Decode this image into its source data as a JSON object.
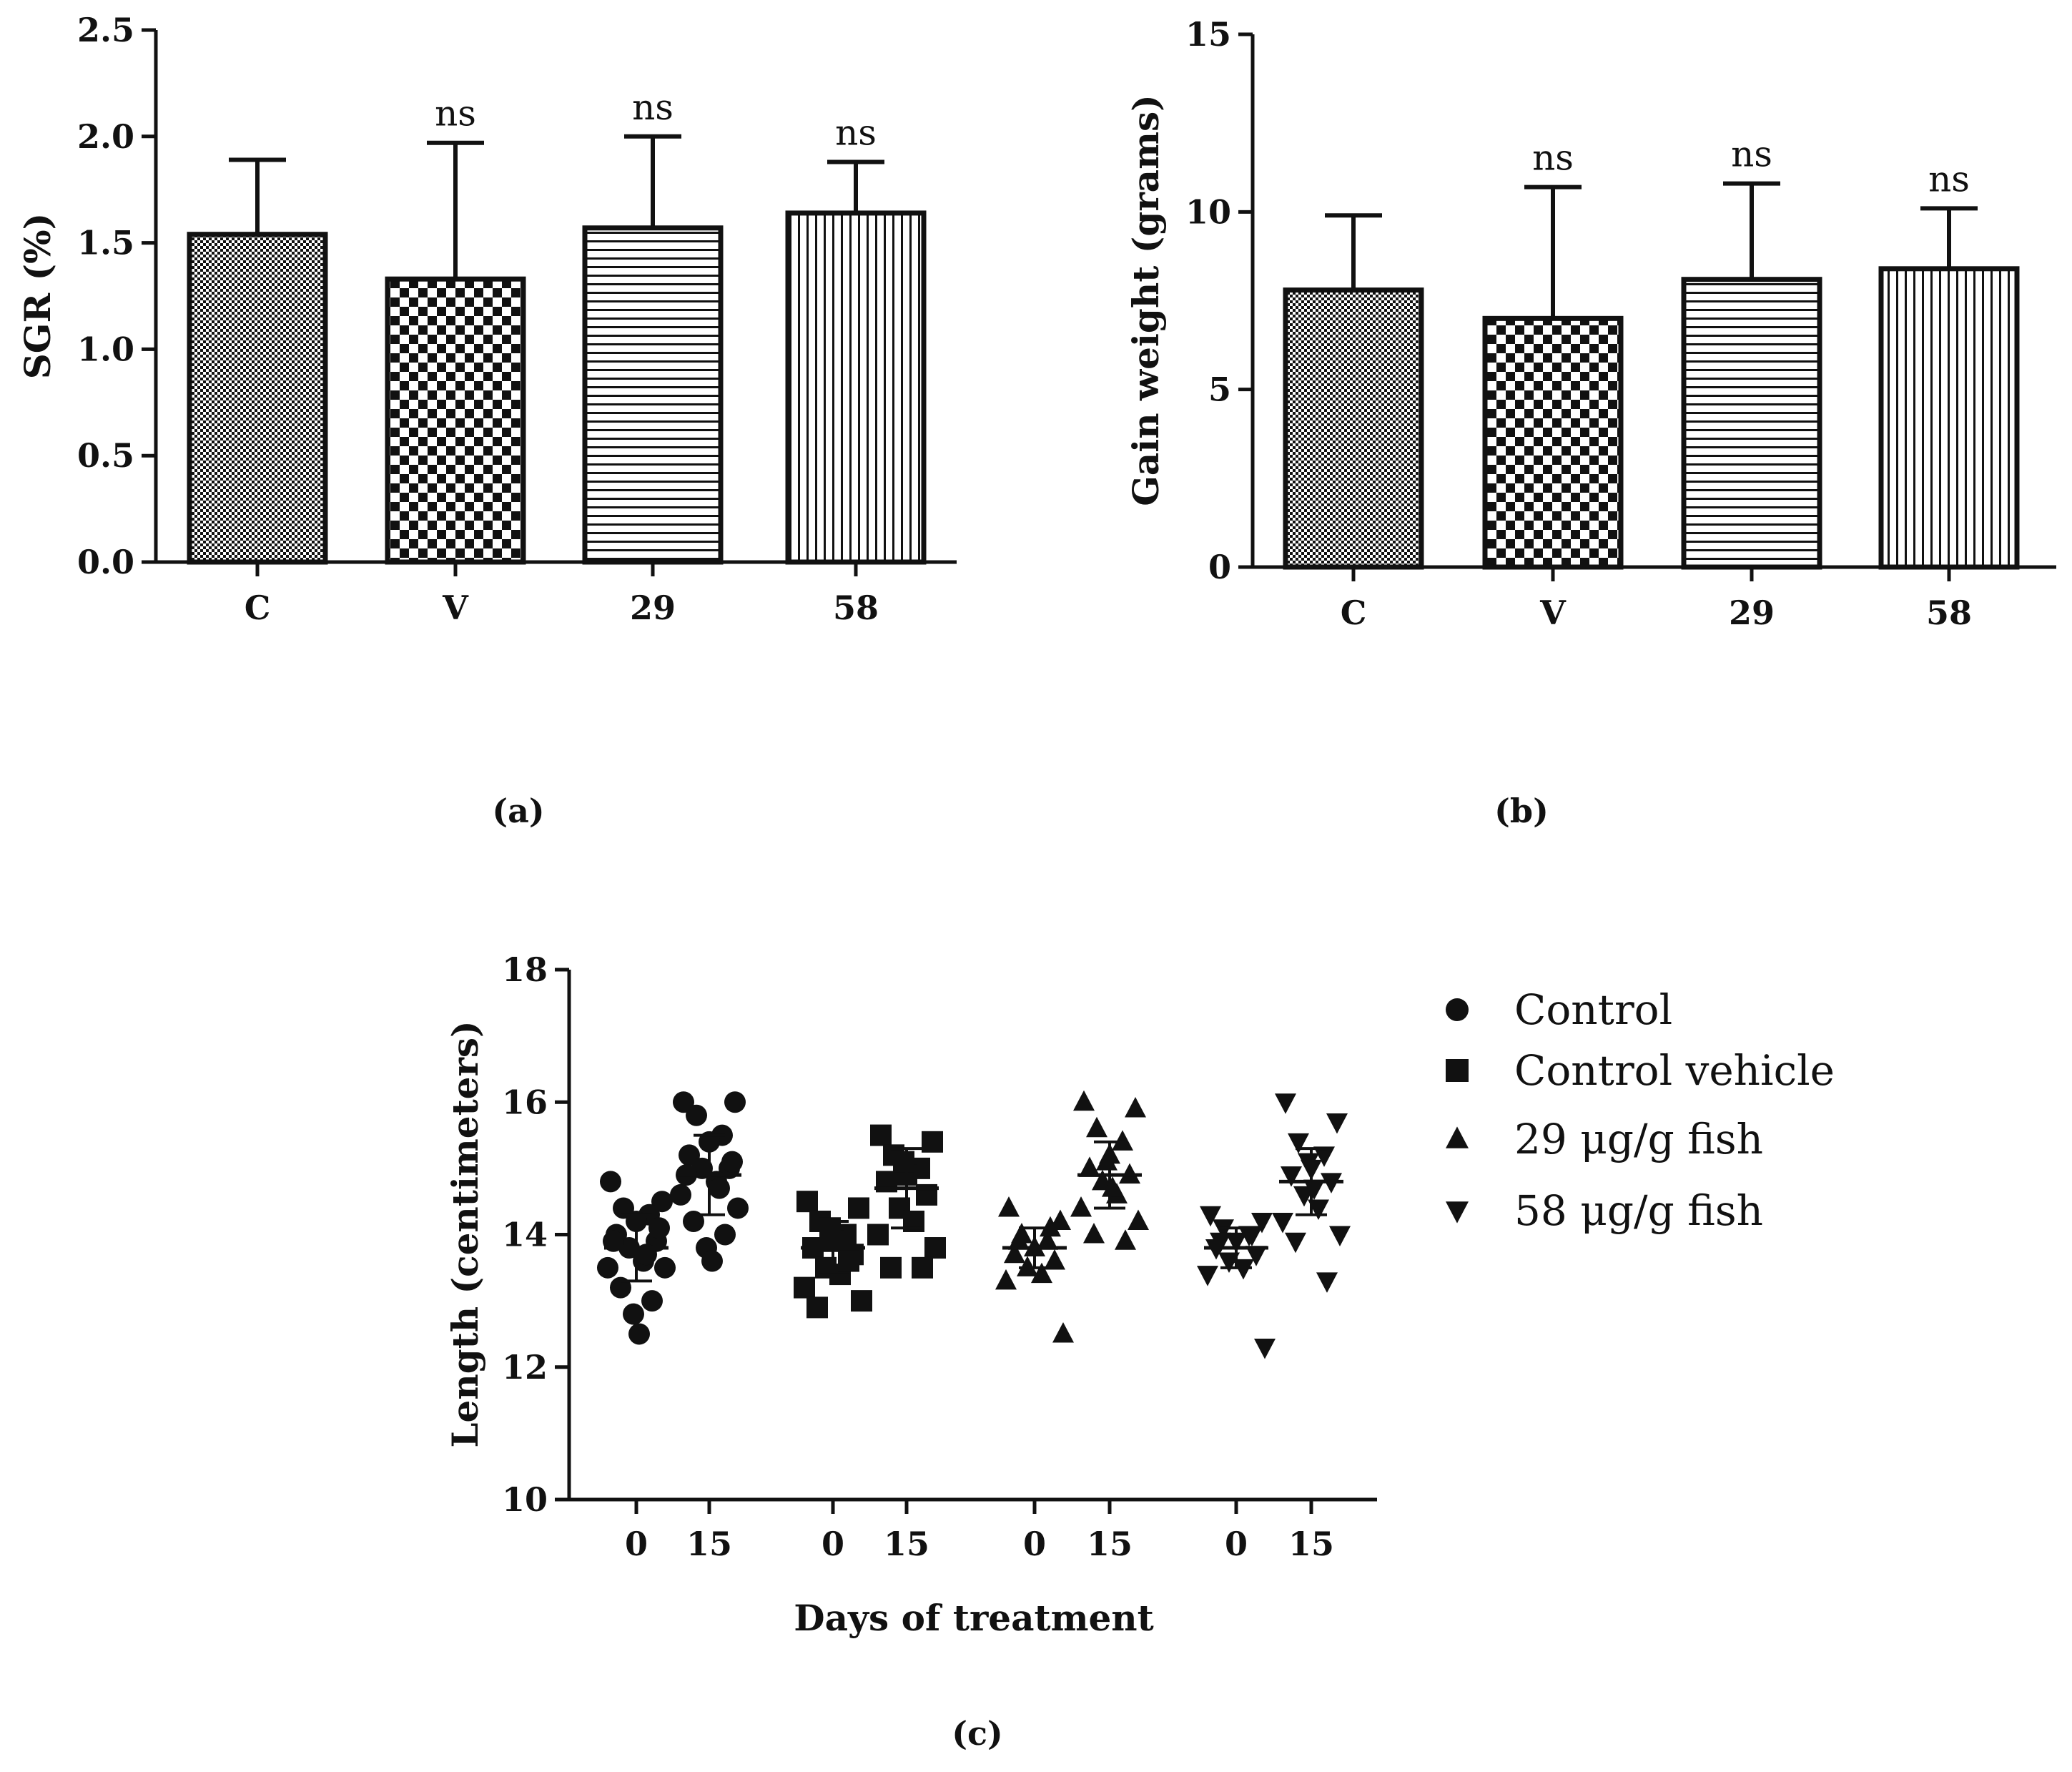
{
  "panels": {
    "a": {
      "label": "(a)"
    },
    "b": {
      "label": "(b)"
    },
    "c": {
      "label": "(c)"
    }
  },
  "legend": [
    {
      "marker": "circle",
      "label": "Control"
    },
    {
      "marker": "square",
      "label": "Control vehicle"
    },
    {
      "marker": "triangle-up",
      "label": "29 μg/g fish"
    },
    {
      "marker": "triangle-down",
      "label": "58 μg/g fish"
    }
  ],
  "colors": {
    "ink": "#111111",
    "background": "#ffffff"
  },
  "chart_data": [
    {
      "id": "a",
      "type": "bar",
      "categories": [
        "C",
        "V",
        "29",
        "58"
      ],
      "values": [
        1.54,
        1.33,
        1.57,
        1.64
      ],
      "errors": [
        0.35,
        0.64,
        0.43,
        0.24
      ],
      "annotations": [
        "",
        "ns",
        "ns",
        "ns"
      ],
      "patterns": [
        "fine-checker",
        "checker",
        "horizontal-lines",
        "vertical-lines"
      ],
      "ylabel": "SGR (%)",
      "xlabel": "",
      "ylim": [
        0,
        2.5
      ],
      "yticks": [
        "0.0",
        "0.5",
        "1.0",
        "1.5",
        "2.0",
        "2.5"
      ],
      "grid": false
    },
    {
      "id": "b",
      "type": "bar",
      "categories": [
        "C",
        "V",
        "29",
        "58"
      ],
      "values": [
        7.8,
        7.0,
        8.1,
        8.4
      ],
      "errors": [
        2.1,
        3.7,
        2.7,
        1.7
      ],
      "annotations": [
        "",
        "ns",
        "ns",
        "ns"
      ],
      "patterns": [
        "fine-checker",
        "checker",
        "horizontal-lines",
        "vertical-lines"
      ],
      "ylabel": "Gain weight (grams)",
      "xlabel": "",
      "ylim": [
        0,
        15
      ],
      "yticks": [
        "0",
        "5",
        "10",
        "15"
      ],
      "grid": false
    },
    {
      "id": "c",
      "type": "scatter",
      "xlabel": "Days of treatment",
      "ylabel": "Length (centimeters)",
      "ylim": [
        10,
        18
      ],
      "yticks": [
        "10",
        "12",
        "14",
        "16",
        "18"
      ],
      "grid": false,
      "legend_position": "right",
      "groups": [
        {
          "series": 0,
          "day": "0",
          "mean": 13.8,
          "sd": 0.5,
          "values": [
            14.8,
            14.5,
            14.4,
            14.3,
            14.2,
            14.0,
            13.9,
            13.8,
            13.6,
            13.5,
            13.5,
            13.2,
            13.0,
            12.8,
            12.5,
            13.9,
            14.1,
            13.7
          ]
        },
        {
          "series": 0,
          "day": "15",
          "mean": 14.9,
          "sd": 0.6,
          "values": [
            16.0,
            16.0,
            15.8,
            15.5,
            15.4,
            15.2,
            15.0,
            15.0,
            14.8,
            14.6,
            14.4,
            14.2,
            14.0,
            13.8,
            13.6,
            14.9,
            15.1,
            14.7
          ]
        },
        {
          "series": 1,
          "day": "0",
          "mean": 13.8,
          "sd": 0.4,
          "values": [
            14.5,
            14.4,
            14.2,
            14.0,
            13.9,
            13.8,
            13.7,
            13.5,
            13.4,
            13.2,
            13.0,
            12.9,
            13.6,
            14.1
          ]
        },
        {
          "series": 1,
          "day": "15",
          "mean": 14.7,
          "sd": 0.6,
          "values": [
            15.5,
            15.4,
            15.2,
            15.0,
            14.9,
            14.8,
            14.6,
            14.4,
            14.2,
            14.0,
            13.8,
            13.5,
            13.5,
            15.1
          ]
        },
        {
          "series": 2,
          "day": "0",
          "mean": 13.8,
          "sd": 0.3,
          "values": [
            14.4,
            14.2,
            14.0,
            13.9,
            13.8,
            13.7,
            13.6,
            13.5,
            13.4,
            13.3,
            12.5,
            13.9,
            14.1
          ]
        },
        {
          "series": 2,
          "day": "15",
          "mean": 14.9,
          "sd": 0.5,
          "values": [
            16.0,
            15.9,
            15.6,
            15.4,
            15.2,
            15.0,
            14.9,
            14.8,
            14.6,
            14.4,
            14.2,
            14.0,
            13.9,
            15.1,
            14.7
          ]
        },
        {
          "series": 3,
          "day": "0",
          "mean": 13.8,
          "sd": 0.3,
          "values": [
            14.3,
            14.2,
            14.1,
            14.0,
            13.9,
            13.8,
            13.7,
            13.6,
            13.5,
            13.4,
            12.3,
            13.9,
            14.0
          ]
        },
        {
          "series": 3,
          "day": "15",
          "mean": 14.8,
          "sd": 0.5,
          "values": [
            16.0,
            15.7,
            15.4,
            15.2,
            15.0,
            14.9,
            14.8,
            14.6,
            14.4,
            14.2,
            14.0,
            13.9,
            13.3,
            15.1,
            14.7
          ]
        }
      ]
    }
  ]
}
